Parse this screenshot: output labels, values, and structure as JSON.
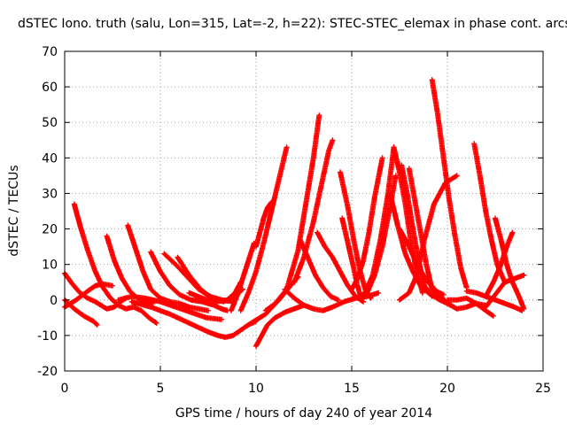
{
  "chart_data": {
    "type": "scatter",
    "title": "dSTEC Iono. truth (salu, Lon=315, Lat=-2, h=22): STEC-STEC_elemax in phase cont. arcs",
    "xlabel": "GPS time / hours of day 240 of year 2014",
    "ylabel": "dSTEC  / TECUs",
    "xlim": [
      0,
      25
    ],
    "ylim": [
      -20,
      70
    ],
    "xticks": [
      0,
      5,
      10,
      15,
      20,
      25
    ],
    "xtick_labels": [
      "0",
      "5",
      "10",
      "15",
      "20",
      "25"
    ],
    "yticks": [
      -20,
      -10,
      0,
      10,
      20,
      30,
      40,
      50,
      60,
      70
    ],
    "ytick_labels": [
      "-20",
      "-10",
      "0",
      "10",
      "20",
      "30",
      "40",
      "50",
      "60",
      "70"
    ],
    "grid": true,
    "marker": "+",
    "color": "#ff0000",
    "series": [
      {
        "x": [
          0.0,
          0.5,
          1.0,
          1.5,
          1.7
        ],
        "y": [
          0.0,
          -2.5,
          -4.5,
          -6.0,
          -7.0
        ]
      },
      {
        "x": [
          0.0,
          0.4,
          0.8,
          1.2,
          1.6,
          1.9,
          2.2,
          2.6,
          2.9,
          3.2
        ],
        "y": [
          7.5,
          4.5,
          2.0,
          0.5,
          -0.5,
          -1.5,
          -2.5,
          -2.0,
          -0.5,
          0.5
        ]
      },
      {
        "x": [
          0.0,
          0.6,
          1.2,
          1.6,
          2.0,
          2.5
        ],
        "y": [
          -2.0,
          0.0,
          2.5,
          4.0,
          4.5,
          4.0
        ]
      },
      {
        "x": [
          0.5,
          0.8,
          1.2,
          1.6,
          2.0,
          2.4,
          2.8,
          3.2,
          3.6,
          4.0,
          4.4,
          4.8
        ],
        "y": [
          27.0,
          21.0,
          14.0,
          8.0,
          3.5,
          0.5,
          -1.5,
          -2.5,
          -2.0,
          -3.0,
          -5.0,
          -6.5
        ]
      },
      {
        "x": [
          2.2,
          2.6,
          3.0,
          3.4,
          3.8,
          4.2,
          4.6
        ],
        "y": [
          18.0,
          11.0,
          6.0,
          2.5,
          0.5,
          -0.5,
          -1.0
        ]
      },
      {
        "x": [
          3.3,
          3.7,
          4.1,
          4.5,
          5.0,
          5.5,
          6.0,
          6.5,
          7.0,
          7.5
        ],
        "y": [
          21.0,
          14.5,
          8.0,
          3.0,
          0.5,
          -0.5,
          -1.0,
          -2.0,
          -2.5,
          -3.0
        ]
      },
      {
        "x": [
          2.8,
          3.5,
          4.2,
          5.0,
          5.8,
          6.6,
          7.4,
          8.2
        ],
        "y": [
          0.0,
          1.0,
          0.5,
          -0.5,
          -2.0,
          -3.5,
          -5.0,
          -5.5
        ]
      },
      {
        "x": [
          4.5,
          5.0,
          5.5,
          6.0,
          6.6,
          7.2,
          7.8,
          8.2,
          8.5
        ],
        "y": [
          13.5,
          8.0,
          4.0,
          1.5,
          0.0,
          -0.5,
          -1.5,
          -2.5,
          -3.0
        ]
      },
      {
        "x": [
          5.2,
          5.8,
          6.4,
          7.0,
          7.6,
          8.2,
          8.8
        ],
        "y": [
          13.0,
          10.0,
          6.5,
          3.0,
          1.0,
          0.0,
          -0.5
        ]
      },
      {
        "x": [
          5.9,
          6.5,
          7.1,
          7.7,
          8.3,
          8.9,
          9.3
        ],
        "y": [
          12.0,
          7.0,
          3.0,
          0.5,
          -0.5,
          1.0,
          3.0
        ]
      },
      {
        "x": [
          3.5,
          4.5,
          5.5,
          6.5,
          7.5,
          8.0,
          8.4,
          8.8,
          9.2,
          9.6,
          10.0
        ],
        "y": [
          -0.5,
          -2.0,
          -4.0,
          -6.5,
          -9.0,
          -10.0,
          -10.5,
          -10.0,
          -8.5,
          -7.0,
          -6.0
        ]
      },
      {
        "x": [
          6.5,
          7.2,
          7.9,
          8.5,
          8.9,
          9.2
        ],
        "y": [
          2.0,
          0.5,
          -0.5,
          0.0,
          2.0,
          5.0
        ]
      },
      {
        "x": [
          8.7,
          9.0,
          9.3,
          9.6,
          9.9
        ],
        "y": [
          -3.0,
          1.0,
          6.0,
          11.0,
          16.0
        ]
      },
      {
        "x": [
          10.0,
          10.3,
          10.6,
          11.0,
          11.5,
          12.0,
          12.5
        ],
        "y": [
          -13.0,
          -10.0,
          -7.0,
          -5.0,
          -3.5,
          -2.5,
          -1.5
        ]
      },
      {
        "x": [
          10.0,
          10.2,
          10.4,
          10.6,
          10.8
        ],
        "y": [
          15.0,
          19.0,
          23.0,
          26.0,
          27.5
        ]
      },
      {
        "x": [
          9.2,
          9.6,
          10.0,
          10.4,
          10.8,
          11.2,
          11.6
        ],
        "y": [
          -3.0,
          2.0,
          8.0,
          16.0,
          25.0,
          34.0,
          43.0
        ]
      },
      {
        "x": [
          9.6,
          10.5,
          11.2,
          11.8,
          12.2
        ],
        "y": [
          -7.0,
          -4.0,
          0.0,
          4.0,
          6.5
        ]
      },
      {
        "x": [
          10.5,
          11.0,
          11.6,
          12.2,
          12.6,
          13.0,
          13.3
        ],
        "y": [
          -3.0,
          -1.0,
          3.0,
          14.0,
          27.0,
          40.0,
          52.0
        ]
      },
      {
        "x": [
          12.0,
          12.5,
          13.0,
          13.4,
          13.8,
          14.0
        ],
        "y": [
          5.0,
          12.0,
          22.0,
          32.0,
          42.0,
          45.0
        ]
      },
      {
        "x": [
          12.3,
          12.7,
          13.1,
          13.5,
          13.9,
          14.3
        ],
        "y": [
          17.0,
          12.0,
          7.0,
          3.5,
          1.0,
          0.0
        ]
      },
      {
        "x": [
          11.5,
          12.0,
          12.5,
          13.0,
          13.5,
          14.0,
          14.6,
          15.2,
          15.8,
          16.4
        ],
        "y": [
          3.0,
          0.5,
          -1.5,
          -2.5,
          -3.0,
          -2.0,
          -0.5,
          0.5,
          1.0,
          2.0
        ]
      },
      {
        "x": [
          13.2,
          13.6,
          14.0,
          14.4,
          14.8,
          15.2,
          15.6
        ],
        "y": [
          19.0,
          15.0,
          12.0,
          8.0,
          4.0,
          1.0,
          -0.5
        ]
      },
      {
        "x": [
          14.4,
          14.8,
          15.1,
          15.4,
          15.7,
          16.0
        ],
        "y": [
          36.0,
          26.0,
          17.0,
          9.0,
          3.0,
          0.5
        ]
      },
      {
        "x": [
          14.5,
          14.8,
          15.1,
          15.3,
          15.5
        ],
        "y": [
          23.0,
          16.0,
          9.0,
          4.0,
          0.5
        ]
      },
      {
        "x": [
          15.0,
          15.3,
          15.6,
          15.9,
          16.2,
          16.6
        ],
        "y": [
          3.0,
          6.0,
          11.0,
          19.0,
          29.0,
          40.0
        ]
      },
      {
        "x": [
          15.3,
          15.7,
          16.1,
          16.5,
          16.9,
          17.2
        ],
        "y": [
          0.5,
          2.0,
          7.0,
          17.0,
          30.0,
          43.0
        ]
      },
      {
        "x": [
          15.8,
          16.2,
          16.6,
          17.0,
          17.3
        ],
        "y": [
          2.0,
          7.0,
          15.0,
          26.0,
          35.0
        ]
      },
      {
        "x": [
          17.2,
          17.5,
          17.8,
          18.1,
          18.4,
          18.7
        ],
        "y": [
          43.0,
          36.0,
          27.0,
          16.0,
          8.0,
          2.0
        ]
      },
      {
        "x": [
          17.6,
          17.9,
          18.2,
          18.5,
          18.8,
          19.2
        ],
        "y": [
          38.0,
          30.0,
          20.0,
          11.0,
          4.0,
          1.0
        ]
      },
      {
        "x": [
          18.0,
          18.3,
          18.6,
          18.9,
          19.2,
          19.6
        ],
        "y": [
          37.0,
          28.0,
          19.0,
          10.0,
          3.0,
          0.5
        ]
      },
      {
        "x": [
          17.0,
          17.4,
          17.8,
          18.2,
          18.6,
          19.0,
          19.6,
          20.2
        ],
        "y": [
          30.0,
          21.0,
          13.0,
          8.0,
          4.0,
          2.0,
          0.0,
          -1.5
        ]
      },
      {
        "x": [
          17.5,
          18.0,
          18.5,
          19.0,
          19.4,
          19.8
        ],
        "y": [
          20.0,
          15.0,
          9.0,
          5.0,
          2.5,
          1.5
        ]
      },
      {
        "x": [
          17.5,
          18.0,
          18.4,
          18.8,
          19.3,
          19.9,
          20.5
        ],
        "y": [
          0.0,
          2.0,
          7.0,
          17.0,
          27.0,
          33.0,
          35.0
        ]
      },
      {
        "x": [
          19.2,
          19.5,
          19.8,
          20.1,
          20.4,
          20.7,
          21.0
        ],
        "y": [
          62.0,
          52.0,
          40.0,
          28.0,
          18.0,
          9.0,
          3.5
        ]
      },
      {
        "x": [
          19.0,
          19.5,
          20.0,
          20.5,
          21.0,
          21.5,
          22.0
        ],
        "y": [
          5.0,
          2.0,
          -1.0,
          -2.5,
          -2.0,
          -1.0,
          -1.5
        ]
      },
      {
        "x": [
          20.0,
          20.5,
          21.0,
          21.5,
          22.0,
          22.4
        ],
        "y": [
          0.0,
          0.0,
          0.5,
          -1.0,
          -3.0,
          -4.5
        ]
      },
      {
        "x": [
          21.4,
          21.7,
          22.0,
          22.3,
          22.6,
          23.0
        ],
        "y": [
          44.0,
          35.0,
          25.0,
          17.0,
          10.0,
          5.0
        ]
      },
      {
        "x": [
          22.5,
          22.8,
          23.1,
          23.4,
          23.7,
          24.0
        ],
        "y": [
          23.0,
          17.0,
          10.0,
          5.0,
          1.5,
          -2.5
        ]
      },
      {
        "x": [
          22.0,
          22.4,
          22.8,
          23.1,
          23.4
        ],
        "y": [
          1.0,
          5.0,
          10.0,
          15.0,
          19.0
        ]
      },
      {
        "x": [
          22.0,
          22.5,
          23.0,
          23.5,
          24.0
        ],
        "y": [
          -2.0,
          1.5,
          5.0,
          6.0,
          7.0
        ]
      },
      {
        "x": [
          21.0,
          21.5,
          22.0,
          22.5,
          23.0,
          23.5,
          23.9
        ],
        "y": [
          2.5,
          2.0,
          1.0,
          0.0,
          -1.0,
          -2.0,
          -3.0
        ]
      }
    ]
  }
}
